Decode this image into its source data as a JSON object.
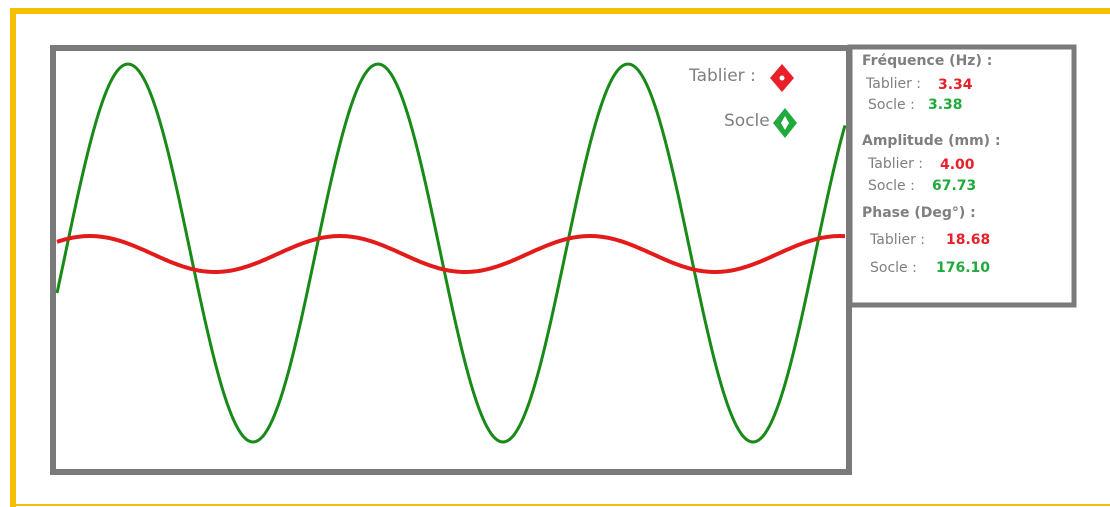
{
  "legend": [
    {
      "label": "Tablier :"
    },
    {
      "label": "Socle :"
    }
  ],
  "panel": {
    "sections": [
      {
        "title": "Fréquence (Hz) :",
        "rows": [
          {
            "label": "Tablier :",
            "value": "3.34"
          },
          {
            "label": "Socle :",
            "value": "3.38"
          }
        ]
      },
      {
        "title": "Amplitude (mm) :",
        "rows": [
          {
            "label": "Tablier :",
            "value": "4.00"
          },
          {
            "label": "Socle :",
            "value": "67.73"
          }
        ]
      },
      {
        "title": "Phase (Deg°) :",
        "rows": [
          {
            "label": "Tablier :",
            "value": "18.68"
          },
          {
            "label": "Socle :",
            "value": "176.10"
          }
        ]
      }
    ]
  }
}
